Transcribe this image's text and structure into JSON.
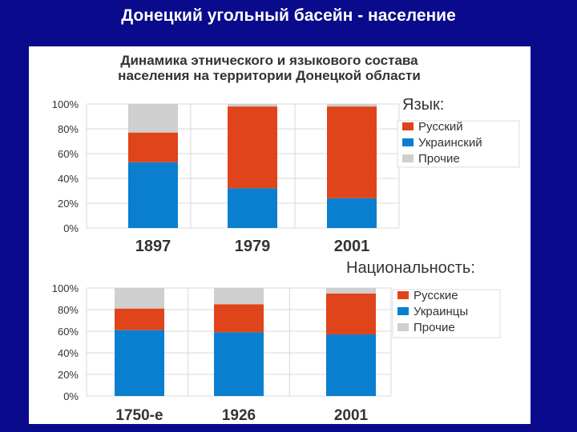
{
  "slide": {
    "title": "Донецкий угольный басейн - население"
  },
  "chart_title_lines": [
    "Динамика этнического и языкового состава",
    "населения на территории Донецкой области"
  ],
  "chart_data": [
    {
      "type": "bar",
      "stacked": true,
      "legend_title": "Язык:",
      "categories": [
        "1897",
        "1979",
        "2001"
      ],
      "series": [
        {
          "name": "Украинский",
          "values": [
            53,
            32,
            24
          ],
          "color": "#0a7fcf"
        },
        {
          "name": "Русский",
          "values": [
            24,
            66,
            74
          ],
          "color": "#e0441b"
        },
        {
          "name": "Прочие",
          "values": [
            23,
            2,
            2
          ],
          "color": "#cfcfcf"
        }
      ],
      "legend_order": [
        1,
        0,
        2
      ],
      "yticks": [
        "0%",
        "20%",
        "40%",
        "60%",
        "80%",
        "100%"
      ],
      "ylim": [
        0,
        100
      ],
      "legend_position": "right"
    },
    {
      "type": "bar",
      "stacked": true,
      "legend_title": "Национальность:",
      "categories": [
        "1750-е",
        "1926",
        "2001"
      ],
      "series": [
        {
          "name": "Украинцы",
          "values": [
            61,
            59,
            57
          ],
          "color": "#0a7fcf"
        },
        {
          "name": "Русские",
          "values": [
            20,
            26,
            38
          ],
          "color": "#e0441b"
        },
        {
          "name": "Прочие",
          "values": [
            19,
            15,
            5
          ],
          "color": "#cfcfcf"
        }
      ],
      "legend_order": [
        1,
        0,
        2
      ],
      "yticks": [
        "0%",
        "20%",
        "40%",
        "60%",
        "80%",
        "100%"
      ],
      "ylim": [
        0,
        100
      ],
      "legend_position": "right"
    }
  ]
}
